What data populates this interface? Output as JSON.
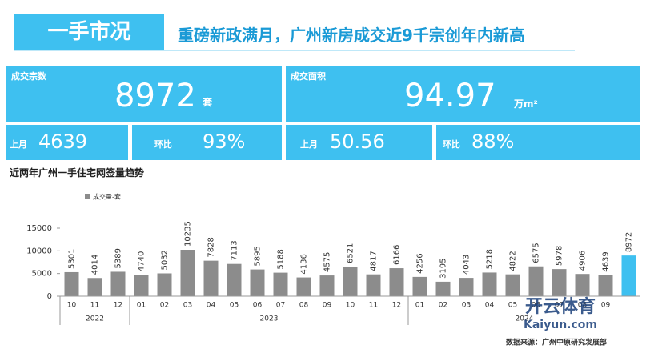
{
  "header": {
    "section": "一手市况",
    "headline": "重磅新政满月，广州新房成交近9千宗创年内新高"
  },
  "stats": {
    "deals": {
      "label": "成交宗数",
      "value": 8972,
      "unit": "套"
    },
    "area": {
      "label": "成交面积",
      "value": 94.97,
      "unit": "万m²"
    },
    "deals_prev": {
      "label": "上月",
      "value": 4639
    },
    "deals_change": {
      "label": "环比",
      "value": "93%"
    },
    "area_prev": {
      "label": "上月",
      "value": 50.56
    },
    "area_change": {
      "label": "环比",
      "value": "88%"
    }
  },
  "chart_data": {
    "type": "bar",
    "title": "近两年广州一手住宅网签量趋势",
    "categories": [
      "10",
      "11",
      "12",
      "01",
      "02",
      "03",
      "04",
      "05",
      "06",
      "07",
      "08",
      "09",
      "10",
      "11",
      "12",
      "01",
      "02",
      "03",
      "04",
      "05",
      "06",
      "07",
      "08",
      "09",
      null
    ],
    "year_groups": [
      {
        "label": "2022",
        "span": 3
      },
      {
        "label": "2023",
        "span": 12
      },
      {
        "label": "2024",
        "span": 10
      }
    ],
    "series": [
      {
        "name": "成交量-套",
        "color": "#8c8c8c",
        "colors": [
          "#8c8c8c",
          "#8c8c8c",
          "#8c8c8c",
          "#8c8c8c",
          "#8c8c8c",
          "#8c8c8c",
          "#8c8c8c",
          "#8c8c8c",
          "#8c8c8c",
          "#8c8c8c",
          "#8c8c8c",
          "#8c8c8c",
          "#8c8c8c",
          "#8c8c8c",
          "#8c8c8c",
          "#8c8c8c",
          "#8c8c8c",
          "#8c8c8c",
          "#8c8c8c",
          "#8c8c8c",
          "#8c8c8c",
          "#8c8c8c",
          "#8c8c8c",
          "#8c8c8c",
          "#3ec0f0"
        ],
        "values": [
          5301,
          4014,
          5389,
          4740,
          5032,
          10235,
          7828,
          7113,
          5895,
          5188,
          4136,
          4575,
          6521,
          4817,
          6166,
          4256,
          3195,
          4043,
          5218,
          4822,
          6575,
          5978,
          4906,
          4639,
          8972
        ]
      }
    ],
    "ylim": [
      0,
      15000
    ],
    "yticks": [
      0,
      5000,
      10000,
      15000
    ]
  },
  "source": "数据来源：广州中原研究发展部",
  "watermark": {
    "name": "开云体育",
    "site": "Kaiyun.com"
  }
}
